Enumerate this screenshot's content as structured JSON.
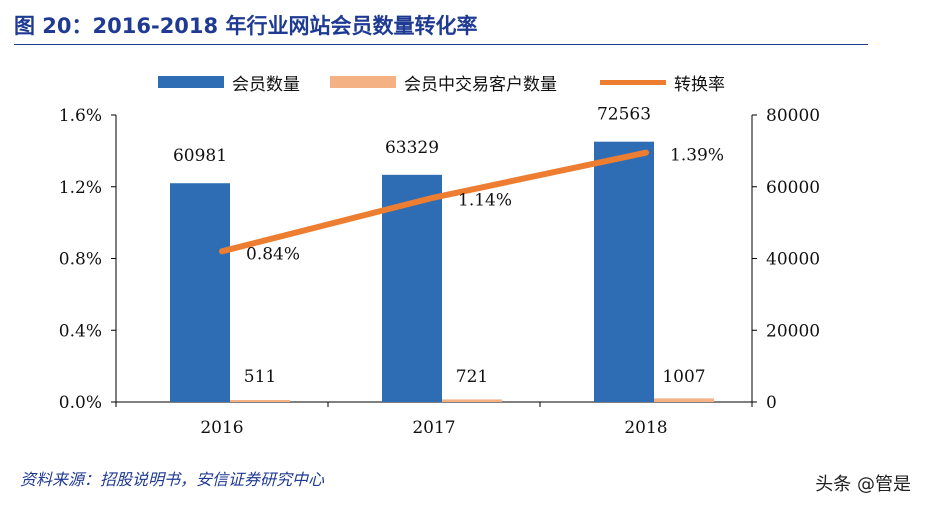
{
  "header": {
    "title": "图 20：2016-2018 年行业网站会员数量转化率"
  },
  "legend": {
    "members": "会员数量",
    "trading_members": "会员中交易客户数量",
    "conversion": "转换率"
  },
  "colors": {
    "members": "#2e6db4",
    "trading_members": "#f4b183",
    "conversion": "#ed7d31",
    "title": "#1f3a93"
  },
  "chart_data": {
    "type": "bar",
    "categories": [
      "2016",
      "2017",
      "2018"
    ],
    "series": [
      {
        "name": "会员数量",
        "kind": "bar",
        "axis": "right",
        "values": [
          60981,
          63329,
          72563
        ],
        "labels": [
          "60981",
          "63329",
          "72563"
        ]
      },
      {
        "name": "会员中交易客户数量",
        "kind": "bar",
        "axis": "right",
        "values": [
          511,
          721,
          1007
        ],
        "labels": [
          "511",
          "721",
          "1007"
        ]
      },
      {
        "name": "转换率",
        "kind": "line",
        "axis": "left",
        "values": [
          0.84,
          1.14,
          1.39
        ],
        "labels": [
          "0.84%",
          "1.14%",
          "1.39%"
        ]
      }
    ],
    "y_left": {
      "min": 0,
      "max": 1.6,
      "ticks": [
        "0.0%",
        "0.4%",
        "0.8%",
        "1.2%",
        "1.6%"
      ]
    },
    "y_right": {
      "min": 0,
      "max": 80000,
      "ticks": [
        "0",
        "20000",
        "40000",
        "60000",
        "80000"
      ]
    },
    "grid": false,
    "legend_position": "top"
  },
  "footer": {
    "source": "资料来源：招股说明书，安信证券研究中心",
    "watermark": "头条 @管是"
  }
}
